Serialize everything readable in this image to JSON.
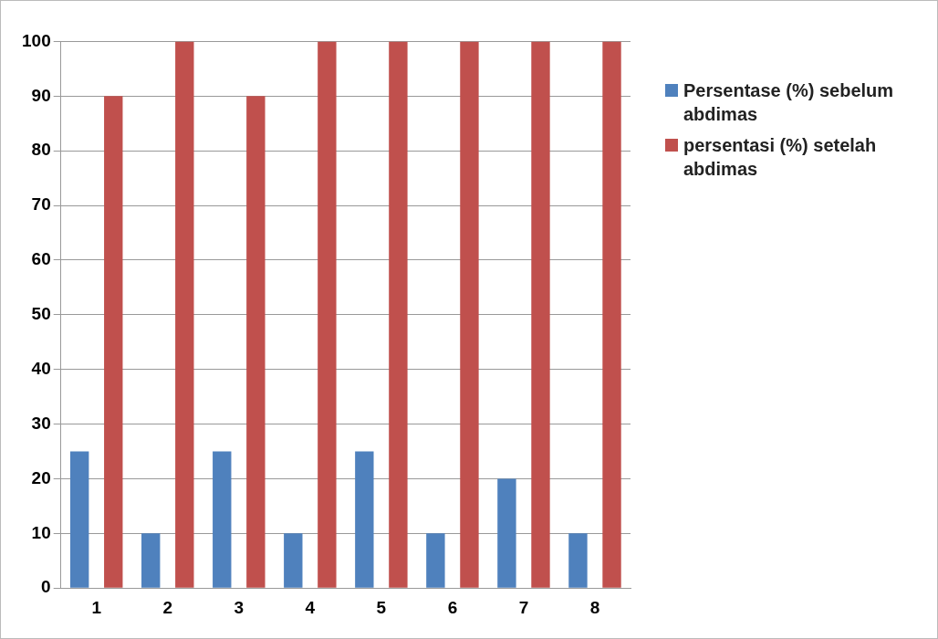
{
  "chart_data": {
    "type": "bar",
    "categories": [
      "1",
      "2",
      "3",
      "4",
      "5",
      "6",
      "7",
      "8"
    ],
    "series": [
      {
        "name": "Persentase (%) sebelum abdimas",
        "color": "#4f81bd",
        "values": [
          25,
          10,
          25,
          10,
          25,
          10,
          20,
          10
        ]
      },
      {
        "name": "persentasi (%) setelah abdimas",
        "color": "#c0504d",
        "values": [
          90,
          100,
          90,
          100,
          100,
          100,
          100,
          100
        ]
      }
    ],
    "ylim": [
      0,
      100
    ],
    "yticks": [
      0,
      10,
      20,
      30,
      40,
      50,
      60,
      70,
      80,
      90,
      100
    ],
    "grid": "y",
    "legend": "right"
  }
}
